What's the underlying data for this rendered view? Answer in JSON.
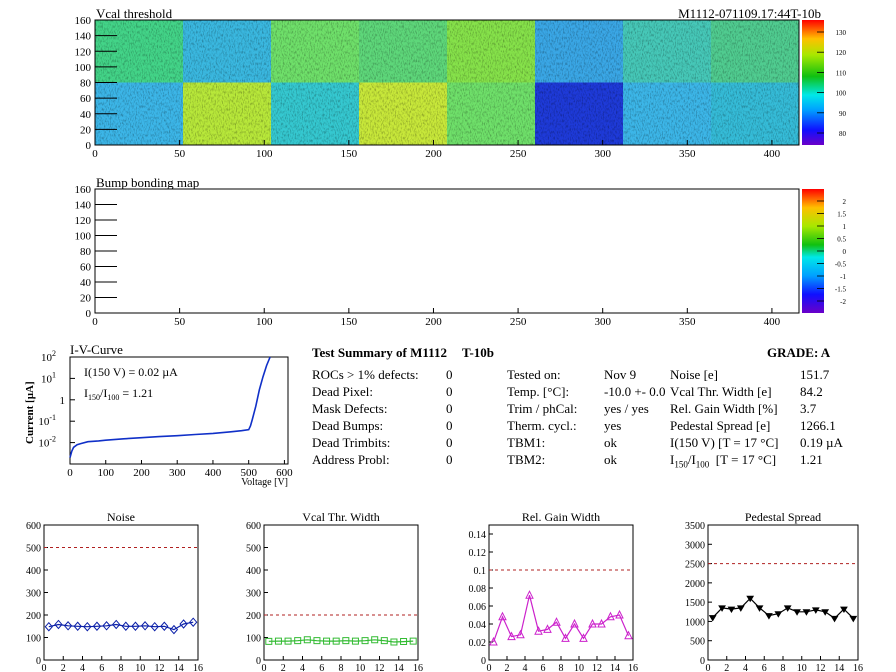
{
  "heat_top": {
    "title": "Vcal threshold",
    "id_label": "M1112-071109.17:44T-10b",
    "palette_ticks": [
      "130",
      "120",
      "110",
      "100",
      "90",
      "80"
    ]
  },
  "heat_bump": {
    "title": "Bump bonding map",
    "palette_ticks": [
      "2",
      "1.5",
      "1",
      "0.5",
      "0",
      "-0.5",
      "-1",
      "-1.5",
      "-2"
    ]
  },
  "heat_axes": {
    "y_ticks": [
      "160",
      "140",
      "120",
      "100",
      "80",
      "60",
      "40",
      "20",
      "0"
    ],
    "x_ticks": [
      "0",
      "50",
      "100",
      "150",
      "200",
      "250",
      "300",
      "350",
      "400"
    ]
  },
  "iv": {
    "title": "I-V-Curve",
    "annot1": "I(150 V) = 0.02 µA",
    "annot2_pre": "I",
    "annot2_sub1": "150",
    "annot2_mid": "/I",
    "annot2_sub2": "100",
    "annot2_post": " =  1.21",
    "ylabel": "Current [µA]",
    "xlabel": "Voltage [V]",
    "x_ticks": [
      "0",
      "100",
      "200",
      "300",
      "400",
      "500",
      "600"
    ],
    "y_ticks": [
      "10",
      "10",
      "10",
      "10"
    ],
    "y_exps": [
      "2",
      "1",
      "-1",
      "-2"
    ],
    "y_plain": "1"
  },
  "summary": {
    "title": "Test Summary of M1112",
    "temp_label": "T-10b",
    "grade": "GRADE:  A",
    "left": [
      {
        "label": "ROCs > 1% defects:",
        "value": "0"
      },
      {
        "label": "Dead Pixel:",
        "value": "0"
      },
      {
        "label": "Mask Defects:",
        "value": "0"
      },
      {
        "label": "Dead Bumps:",
        "value": "0"
      },
      {
        "label": "Dead Trimbits:",
        "value": "0"
      },
      {
        "label": "Address Probl:",
        "value": "0"
      }
    ],
    "mid": [
      {
        "label": "Tested on:",
        "value": "Nov 9"
      },
      {
        "label": "Temp. [°C]:",
        "value": "-10.0 +- 0.0"
      },
      {
        "label": "Trim / phCal:",
        "value": "yes / yes"
      },
      {
        "label": "Therm. cycl.:",
        "value": "yes"
      },
      {
        "label": "TBM1:",
        "value": "ok"
      },
      {
        "label": "TBM2:",
        "value": "ok"
      }
    ],
    "right": [
      {
        "label": "Noise [e]",
        "value": "151.7"
      },
      {
        "label": "Vcal Thr. Width [e]",
        "value": "84.2"
      },
      {
        "label": "Rel. Gain Width [%]",
        "value": "3.7"
      },
      {
        "label": "Pedestal Spread [e]",
        "value": "1266.1"
      },
      {
        "label": "I(150 V) [T = 17 °C]",
        "value": "0.19 µA"
      },
      {
        "label": "I150/I100  [T = 17 °C]",
        "value": "1.21"
      }
    ]
  },
  "chart_data": [
    {
      "type": "line",
      "title": "Noise",
      "color": "#0a1fa8",
      "marker": "diamond",
      "x": [
        0,
        1,
        2,
        3,
        4,
        5,
        6,
        7,
        8,
        9,
        10,
        11,
        12,
        13,
        14,
        15
      ],
      "values": [
        148,
        158,
        152,
        150,
        148,
        150,
        152,
        158,
        150,
        150,
        152,
        148,
        150,
        135,
        160,
        168
      ],
      "ylim": [
        0,
        600
      ],
      "xlim": [
        0,
        16
      ],
      "ref_line": 500,
      "y_ticks": [
        "600",
        "500",
        "400",
        "300",
        "200",
        "100",
        "0"
      ],
      "x_ticks": [
        "0",
        "2",
        "4",
        "6",
        "8",
        "10",
        "12",
        "14",
        "16"
      ]
    },
    {
      "type": "line",
      "title": "Vcal Thr. Width",
      "color": "#33bb33",
      "marker": "square",
      "x": [
        0,
        1,
        2,
        3,
        4,
        5,
        6,
        7,
        8,
        9,
        10,
        11,
        12,
        13,
        14,
        15
      ],
      "values": [
        83,
        84,
        84,
        86,
        90,
        86,
        84,
        84,
        86,
        84,
        86,
        90,
        86,
        80,
        82,
        84
      ],
      "ylim": [
        0,
        600
      ],
      "xlim": [
        0,
        16
      ],
      "ref_line": 200,
      "y_ticks": [
        "600",
        "500",
        "400",
        "300",
        "200",
        "100",
        "0"
      ],
      "x_ticks": [
        "0",
        "2",
        "4",
        "6",
        "8",
        "10",
        "12",
        "14",
        "16"
      ]
    },
    {
      "type": "line",
      "title": "Rel. Gain Width",
      "color": "#cc22cc",
      "marker": "triangle",
      "x": [
        0,
        1,
        2,
        3,
        4,
        5,
        6,
        7,
        8,
        9,
        10,
        11,
        12,
        13,
        14,
        15
      ],
      "values": [
        0.02,
        0.048,
        0.026,
        0.028,
        0.072,
        0.032,
        0.034,
        0.042,
        0.024,
        0.04,
        0.024,
        0.04,
        0.04,
        0.048,
        0.05,
        0.027
      ],
      "ylim": [
        0,
        0.15
      ],
      "xlim": [
        0,
        16
      ],
      "ref_line": 0.1,
      "y_ticks": [
        "0.14",
        "0.12",
        "0.1",
        "0.08",
        "0.06",
        "0.04",
        "0.02",
        "0"
      ],
      "x_ticks": [
        "0",
        "2",
        "4",
        "6",
        "8",
        "10",
        "12",
        "14",
        "16"
      ]
    },
    {
      "type": "line",
      "title": "Pedestal Spread",
      "color": "#000000",
      "marker": "triangle-down",
      "x": [
        0,
        1,
        2,
        3,
        4,
        5,
        6,
        7,
        8,
        9,
        10,
        11,
        12,
        13,
        14,
        15
      ],
      "values": [
        1100,
        1350,
        1320,
        1350,
        1600,
        1350,
        1150,
        1200,
        1350,
        1250,
        1250,
        1300,
        1250,
        1080,
        1320,
        1080
      ],
      "ylim": [
        0,
        3500
      ],
      "xlim": [
        0,
        16
      ],
      "ref_line": 2500,
      "y_ticks": [
        "3500",
        "3000",
        "2500",
        "2000",
        "1500",
        "1000",
        "500",
        "0"
      ],
      "x_ticks": [
        "0",
        "2",
        "4",
        "6",
        "8",
        "10",
        "12",
        "14",
        "16"
      ]
    },
    {
      "type": "line",
      "title": "I-V-Curve",
      "color": "#1030c8",
      "x": [
        0,
        5,
        10,
        20,
        30,
        50,
        80,
        100,
        150,
        200,
        250,
        300,
        350,
        400,
        450,
        480,
        500,
        505,
        510,
        520,
        530,
        540,
        550,
        560
      ],
      "values": [
        0.002,
        0.004,
        0.006,
        0.008,
        0.009,
        0.011,
        0.012,
        0.013,
        0.015,
        0.017,
        0.019,
        0.021,
        0.024,
        0.027,
        0.032,
        0.036,
        0.04,
        0.06,
        0.12,
        0.5,
        3,
        12,
        40,
        100
      ],
      "ylim": [
        0.001,
        100
      ],
      "xlim": [
        0,
        610
      ],
      "yscale": "log"
    }
  ]
}
